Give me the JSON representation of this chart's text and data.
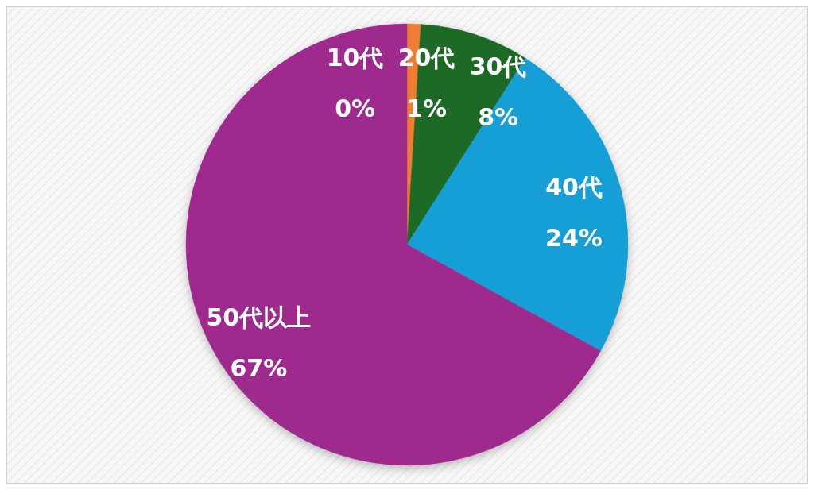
{
  "chart_data": {
    "type": "pie",
    "categories": [
      "10代",
      "20代",
      "30代",
      "40代",
      "50代以上"
    ],
    "values": [
      0,
      1,
      8,
      24,
      67
    ],
    "value_labels": [
      "0%",
      "1%",
      "8%",
      "24%",
      "67%"
    ],
    "colors": [
      "#4472c4",
      "#ed7d31",
      "#1e6b26",
      "#139fd6",
      "#9e2a8e"
    ]
  }
}
